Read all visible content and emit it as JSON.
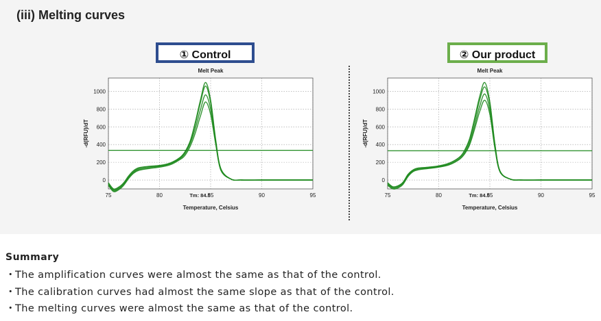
{
  "section_title": "(iii) Melting curves",
  "panels": [
    {
      "label": "① Control"
    },
    {
      "label": "② Our product"
    }
  ],
  "chart_data": [
    {
      "type": "line",
      "title": "Melt Peak",
      "xlabel": "Temperature, Celsius",
      "ylabel": "-d(RFU)/dT",
      "xlim": [
        75,
        95
      ],
      "ylim": [
        -100,
        1150
      ],
      "xticks": [
        75,
        80,
        85,
        90,
        95
      ],
      "yticks": [
        0,
        200,
        400,
        600,
        800,
        1000
      ],
      "grid": true,
      "tm_label": "Tm: 84.5",
      "tm_value": 84.5,
      "threshold": 335,
      "color": "#1e8a1e",
      "series": [
        {
          "x": [
            75,
            75.5,
            76,
            76.5,
            77,
            77.5,
            78,
            79,
            80,
            81,
            82,
            82.5,
            83,
            83.5,
            84,
            84.5,
            85,
            85.5,
            86,
            87,
            88,
            90,
            92,
            95
          ],
          "y": [
            -40,
            -110,
            -90,
            -40,
            40,
            100,
            130,
            150,
            160,
            185,
            250,
            320,
            440,
            650,
            900,
            1100,
            900,
            450,
            130,
            10,
            0,
            0,
            0,
            0
          ]
        },
        {
          "x": [
            75,
            75.5,
            76,
            76.5,
            77,
            77.5,
            78,
            79,
            80,
            81,
            82,
            82.5,
            83,
            83.5,
            84,
            84.5,
            85,
            85.5,
            86,
            87,
            88,
            90,
            92,
            95
          ],
          "y": [
            -30,
            -100,
            -80,
            -30,
            50,
            110,
            140,
            155,
            165,
            190,
            255,
            320,
            430,
            630,
            870,
            1060,
            870,
            430,
            120,
            10,
            0,
            0,
            0,
            0
          ]
        },
        {
          "x": [
            75,
            75.5,
            76,
            76.5,
            77,
            77.5,
            78,
            79,
            80,
            81,
            82,
            82.5,
            83,
            83.5,
            84,
            84.5,
            85,
            85.5,
            86,
            87,
            88,
            90,
            92,
            95
          ],
          "y": [
            -50,
            -120,
            -100,
            -50,
            30,
            90,
            120,
            140,
            155,
            180,
            240,
            300,
            410,
            580,
            790,
            960,
            800,
            420,
            120,
            10,
            0,
            0,
            0,
            0
          ]
        },
        {
          "x": [
            75,
            75.5,
            76,
            76.5,
            77,
            77.5,
            78,
            79,
            80,
            81,
            82,
            82.5,
            83,
            83.5,
            84,
            84.5,
            85,
            85.5,
            86,
            87,
            88,
            90,
            92,
            95
          ],
          "y": [
            -60,
            -130,
            -110,
            -60,
            20,
            80,
            110,
            130,
            145,
            170,
            230,
            280,
            380,
            530,
            720,
            880,
            740,
            400,
            110,
            10,
            0,
            0,
            0,
            0
          ]
        }
      ]
    },
    {
      "type": "line",
      "title": "Melt Peak",
      "xlabel": "Temperature, Celsius",
      "ylabel": "-d(RFU)/dT",
      "xlim": [
        75,
        95
      ],
      "ylim": [
        -100,
        1150
      ],
      "xticks": [
        75,
        80,
        85,
        90,
        95
      ],
      "yticks": [
        0,
        200,
        400,
        600,
        800,
        1000
      ],
      "grid": true,
      "tm_label": "Tm: 84.5",
      "tm_value": 84.5,
      "threshold": 330,
      "color": "#1e8a1e",
      "series": [
        {
          "x": [
            75,
            75.5,
            76,
            76.5,
            77,
            77.5,
            78,
            79,
            80,
            81,
            82,
            82.5,
            83,
            83.5,
            84,
            84.5,
            85,
            85.5,
            86,
            87,
            88,
            90,
            92,
            95
          ],
          "y": [
            -40,
            -80,
            -70,
            -30,
            60,
            110,
            130,
            140,
            155,
            185,
            255,
            330,
            460,
            690,
            940,
            1100,
            880,
            400,
            100,
            10,
            0,
            0,
            0,
            0
          ]
        },
        {
          "x": [
            75,
            75.5,
            76,
            76.5,
            77,
            77.5,
            78,
            79,
            80,
            81,
            82,
            82.5,
            83,
            83.5,
            84,
            84.5,
            85,
            85.5,
            86,
            87,
            88,
            90,
            92,
            95
          ],
          "y": [
            -30,
            -75,
            -65,
            -25,
            65,
            115,
            135,
            145,
            160,
            190,
            255,
            320,
            440,
            660,
            900,
            1050,
            850,
            390,
            100,
            10,
            0,
            0,
            0,
            0
          ]
        },
        {
          "x": [
            75,
            75.5,
            76,
            76.5,
            77,
            77.5,
            78,
            79,
            80,
            81,
            82,
            82.5,
            83,
            83.5,
            84,
            84.5,
            85,
            85.5,
            86,
            87,
            88,
            90,
            92,
            95
          ],
          "y": [
            -50,
            -90,
            -80,
            -40,
            50,
            100,
            120,
            135,
            150,
            175,
            240,
            300,
            410,
            610,
            830,
            970,
            790,
            370,
            95,
            10,
            0,
            0,
            0,
            0
          ]
        },
        {
          "x": [
            75,
            75.5,
            76,
            76.5,
            77,
            77.5,
            78,
            79,
            80,
            81,
            82,
            82.5,
            83,
            83.5,
            84,
            84.5,
            85,
            85.5,
            86,
            87,
            88,
            90,
            92,
            95
          ],
          "y": [
            -60,
            -100,
            -90,
            -50,
            40,
            95,
            115,
            130,
            145,
            170,
            230,
            290,
            390,
            570,
            770,
            900,
            740,
            350,
            90,
            10,
            0,
            0,
            0,
            0
          ]
        }
      ]
    }
  ],
  "summary": {
    "title": "Summary",
    "items": [
      "The amplification curves were almost the same as that of the control.",
      "The calibration curves had almost the same slope as that of the control.",
      "The melting curves were almost the same as that of the control."
    ],
    "bullet": "・"
  }
}
